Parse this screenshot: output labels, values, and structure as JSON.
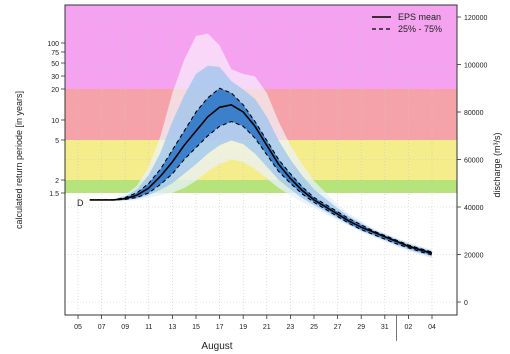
{
  "chart_data": {
    "type": "area",
    "xlabel": "August",
    "ylabel_left": "calculated return periode [in years]",
    "ylabel_right": "discharge (m³/s)",
    "x_ticks": [
      "05",
      "07",
      "09",
      "11",
      "13",
      "15",
      "17",
      "19",
      "21",
      "23",
      "25",
      "27",
      "29",
      "31",
      "02",
      "04"
    ],
    "left_ticks": [
      "100",
      "75",
      "50",
      "30",
      "20",
      "10",
      "5",
      "2",
      "1.5"
    ],
    "right_ticks": [
      "120000",
      "100000",
      "80000",
      "60000",
      "40000",
      "20000",
      "0"
    ],
    "right_ylim": [
      0,
      120000
    ],
    "bands": [
      {
        "from_years": 20,
        "to_years": 1000,
        "color": "#f5a3f0"
      },
      {
        "from_years": 5,
        "to_years": 20,
        "color": "#f5a3a8"
      },
      {
        "from_years": 2,
        "to_years": 5,
        "color": "#f5ec8c"
      },
      {
        "from_years": 1.5,
        "to_years": 2,
        "color": "#b6e37a"
      }
    ],
    "start_marker": "D",
    "x": [
      "06",
      "07",
      "08",
      "09",
      "10",
      "11",
      "12",
      "13",
      "14",
      "15",
      "16",
      "17",
      "18",
      "19",
      "20",
      "21",
      "22",
      "23",
      "24",
      "25",
      "26",
      "27",
      "28",
      "29",
      "30",
      "31",
      "01",
      "02",
      "03",
      "04"
    ],
    "series": [
      {
        "name": "EPS mean",
        "style": "solid",
        "values": [
          43000,
          43000,
          43000,
          43500,
          45000,
          48000,
          53000,
          59000,
          66000,
          72000,
          78000,
          82000,
          83000,
          80000,
          74000,
          66000,
          58000,
          52000,
          47000,
          43000,
          40000,
          37000,
          34000,
          31500,
          29500,
          27500,
          25500,
          23500,
          22000,
          20500
        ]
      },
      {
        "name": "25% - 75%",
        "style": "dashed-upper",
        "values": [
          43000,
          43000,
          43000,
          44000,
          46000,
          50000,
          56000,
          64000,
          72000,
          80000,
          86000,
          90000,
          88000,
          83000,
          76000,
          68000,
          60000,
          54000,
          48500,
          44000,
          41000,
          38000,
          35000,
          32500,
          30000,
          28000,
          26000,
          24000,
          22500,
          21000
        ]
      },
      {
        "name": "25% - 75% lower",
        "style": "dashed-lower",
        "values": [
          43000,
          43000,
          43000,
          43200,
          44000,
          46000,
          49500,
          54000,
          60000,
          65000,
          70000,
          74000,
          76000,
          74000,
          69000,
          62000,
          55000,
          50000,
          45500,
          42000,
          39000,
          36000,
          33000,
          30500,
          28500,
          26500,
          24500,
          22800,
          21200,
          19800
        ]
      }
    ],
    "envelope": {
      "max": [
        43000,
        43000,
        43500,
        45000,
        49000,
        57000,
        70000,
        88000,
        102000,
        112000,
        113000,
        108000,
        98000,
        96000,
        95000,
        88000,
        76000,
        66000,
        58000,
        51000,
        46000,
        41000,
        37000,
        34000,
        31000,
        29000,
        27000,
        25000,
        23500,
        22000
      ],
      "min": [
        43000,
        43000,
        42500,
        42500,
        43000,
        44000,
        45000,
        46000,
        48000,
        51000,
        55000,
        58000,
        60000,
        59000,
        56000,
        52000,
        48000,
        45000,
        42000,
        39500,
        37000,
        34500,
        32000,
        29500,
        27500,
        25500,
        23500,
        21500,
        20000,
        18500
      ]
    },
    "legend_position": "top-right",
    "grid": true
  }
}
